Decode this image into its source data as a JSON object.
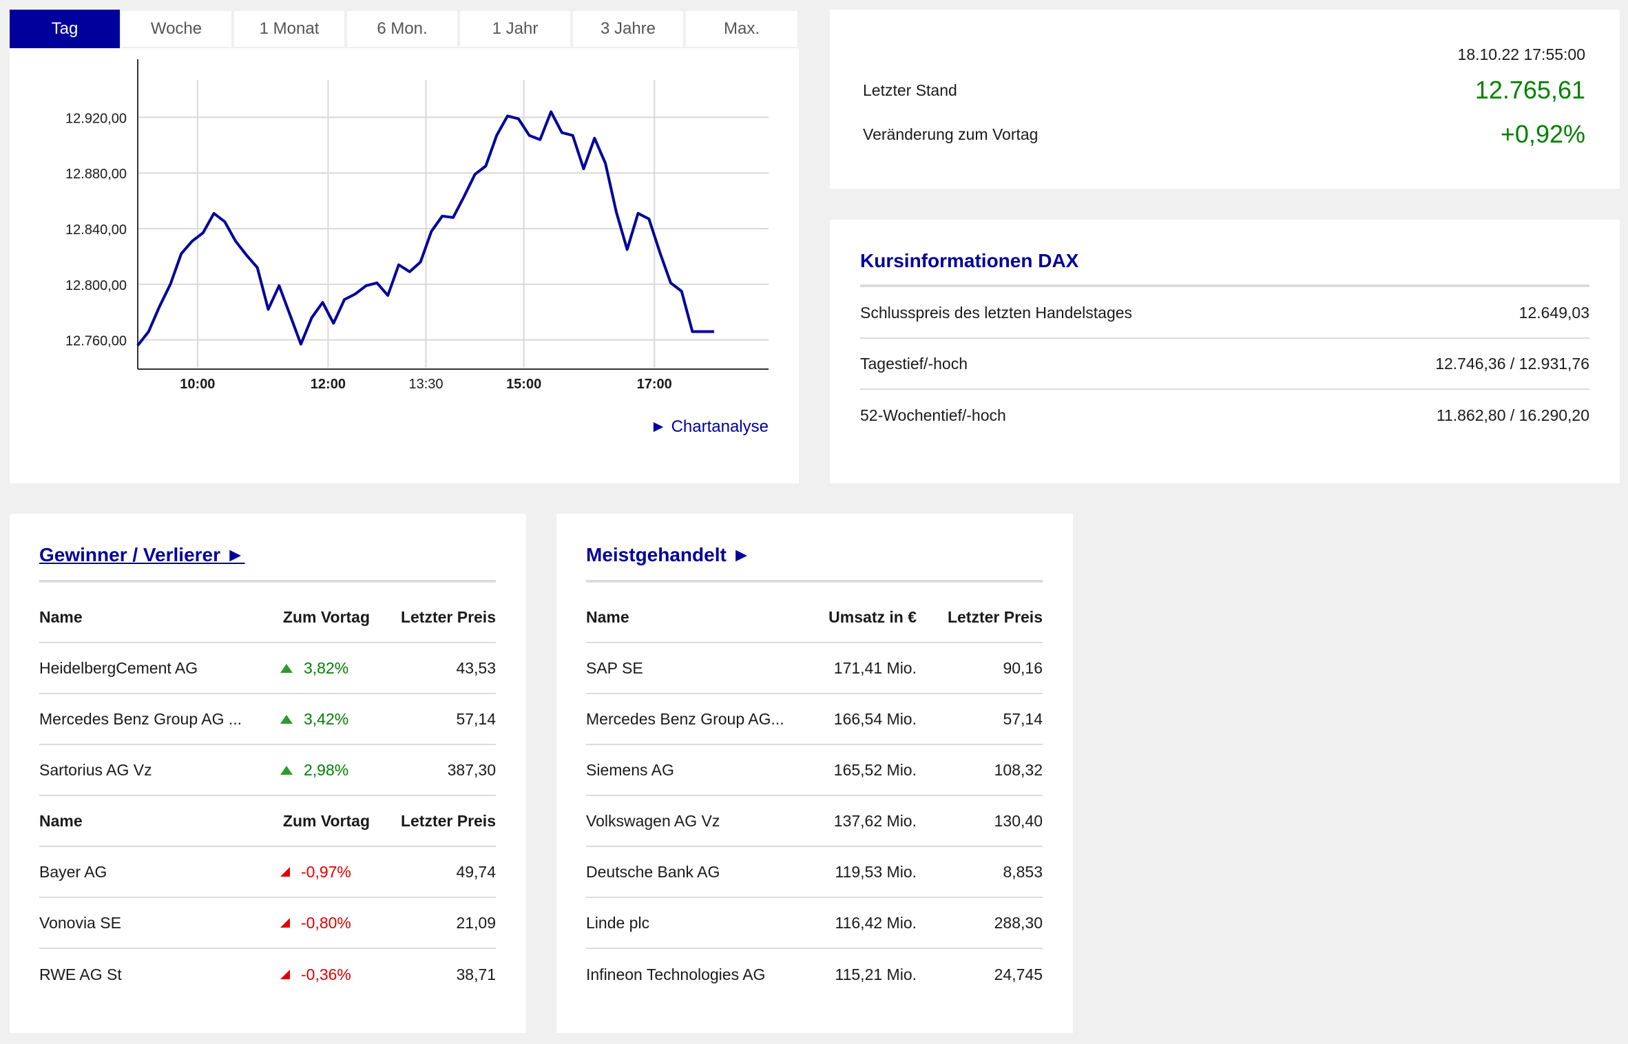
{
  "chart": {
    "tabs": [
      "Tag",
      "Woche",
      "1 Monat",
      "6 Mon.",
      "1 Jahr",
      "3 Jahre",
      "Max."
    ],
    "active_tab": "Tag",
    "link_label": "Chartanalyse",
    "link_icon": "play-triangle-icon"
  },
  "chart_data": {
    "type": "line",
    "title": "",
    "xlabel": "",
    "ylabel": "",
    "line_color": "#00009b",
    "grid": true,
    "ylim": [
      12740,
      12940
    ],
    "y_ticks": [
      "12.760,00",
      "12.800,00",
      "12.840,00",
      "12.880,00",
      "12.920,00"
    ],
    "y_tick_values": [
      12760,
      12800,
      12840,
      12880,
      12920
    ],
    "x_ticks": [
      "10:00",
      "12:00",
      "13:30",
      "15:00",
      "17:00"
    ],
    "x_tick_bold": [
      true,
      true,
      false,
      true,
      true
    ],
    "x_start": "09:05",
    "x_end": "18:45",
    "series": [
      {
        "x": [
          "09:05",
          "09:15",
          "09:25",
          "09:35",
          "09:45",
          "09:55",
          "10:05",
          "10:15",
          "10:25",
          "10:35",
          "10:45",
          "10:55",
          "11:05",
          "11:15",
          "11:25",
          "11:35",
          "11:45",
          "11:55",
          "12:05",
          "12:15",
          "12:25",
          "12:35",
          "12:45",
          "12:55",
          "13:05",
          "13:15",
          "13:25",
          "13:35",
          "13:45",
          "13:55",
          "14:05",
          "14:15",
          "14:25",
          "14:35",
          "14:45",
          "14:55",
          "15:05",
          "15:15",
          "15:25",
          "15:35",
          "15:45",
          "15:55",
          "16:05",
          "16:15",
          "16:25",
          "16:35",
          "16:45",
          "16:55",
          "17:05",
          "17:15",
          "17:25",
          "17:35",
          "17:45",
          "17:55"
        ],
        "values": [
          12756,
          12766,
          12784,
          12800,
          12822,
          12831,
          12837,
          12851,
          12845,
          12831,
          12821,
          12812,
          12782,
          12799,
          12778,
          12757,
          12776,
          12787,
          12772,
          12789,
          12793,
          12799,
          12801,
          12792,
          12814,
          12809,
          12816,
          12838,
          12849,
          12848,
          12863,
          12879,
          12885,
          12907,
          12921,
          12919,
          12907,
          12904,
          12924,
          12909,
          12907,
          12883,
          12905,
          12887,
          12852,
          12825,
          12851,
          12847,
          12823,
          12801,
          12795,
          12766,
          12766,
          12766
        ]
      }
    ]
  },
  "quote": {
    "datetime": "18.10.22 17:55:00",
    "last_label": "Letzter Stand",
    "last_value": "12.765,61",
    "change_label": "Veränderung zum Vortag",
    "change_value": "+0,92%",
    "positive_color": "#008000"
  },
  "info": {
    "title": "Kursinformationen DAX",
    "rows": [
      {
        "label": "Schlusspreis des letzten Handelstages",
        "value": "12.649,03"
      },
      {
        "label": "Tagestief/-hoch",
        "value": "12.746,36 / 12.931,76"
      },
      {
        "label": "52-Wochentief/-hoch",
        "value": "11.862,80 / 16.290,20"
      }
    ]
  },
  "movers": {
    "title": "Gewinner / Verlierer ►",
    "header": {
      "name": "Name",
      "change": "Zum Vortag",
      "price": "Letzter Preis"
    },
    "winners": [
      {
        "name": "HeidelbergCement AG",
        "change": "3,82%",
        "price": "43,53"
      },
      {
        "name": "Mercedes Benz Group AG ...",
        "change": "3,42%",
        "price": "57,14"
      },
      {
        "name": "Sartorius AG Vz",
        "change": "2,98%",
        "price": "387,30"
      }
    ],
    "losers": [
      {
        "name": "Bayer AG",
        "change": "-0,97%",
        "price": "49,74"
      },
      {
        "name": "Vonovia SE",
        "change": "-0,80%",
        "price": "21,09"
      },
      {
        "name": "RWE AG St",
        "change": "-0,36%",
        "price": "38,71"
      }
    ]
  },
  "most_traded": {
    "title": "Meistgehandelt ►",
    "header": {
      "name": "Name",
      "volume": "Umsatz in €",
      "price": "Letzter Preis"
    },
    "rows": [
      {
        "name": "SAP SE",
        "volume": "171,41 Mio.",
        "price": "90,16"
      },
      {
        "name": "Mercedes Benz Group AG...",
        "volume": "166,54 Mio.",
        "price": "57,14"
      },
      {
        "name": "Siemens AG",
        "volume": "165,52 Mio.",
        "price": "108,32"
      },
      {
        "name": "Volkswagen AG Vz",
        "volume": "137,62 Mio.",
        "price": "130,40"
      },
      {
        "name": "Deutsche Bank AG",
        "volume": "119,53 Mio.",
        "price": "8,853"
      },
      {
        "name": "Linde plc",
        "volume": "116,42 Mio.",
        "price": "288,30"
      },
      {
        "name": "Infineon Technologies AG",
        "volume": "115,21 Mio.",
        "price": "24,745"
      }
    ]
  }
}
